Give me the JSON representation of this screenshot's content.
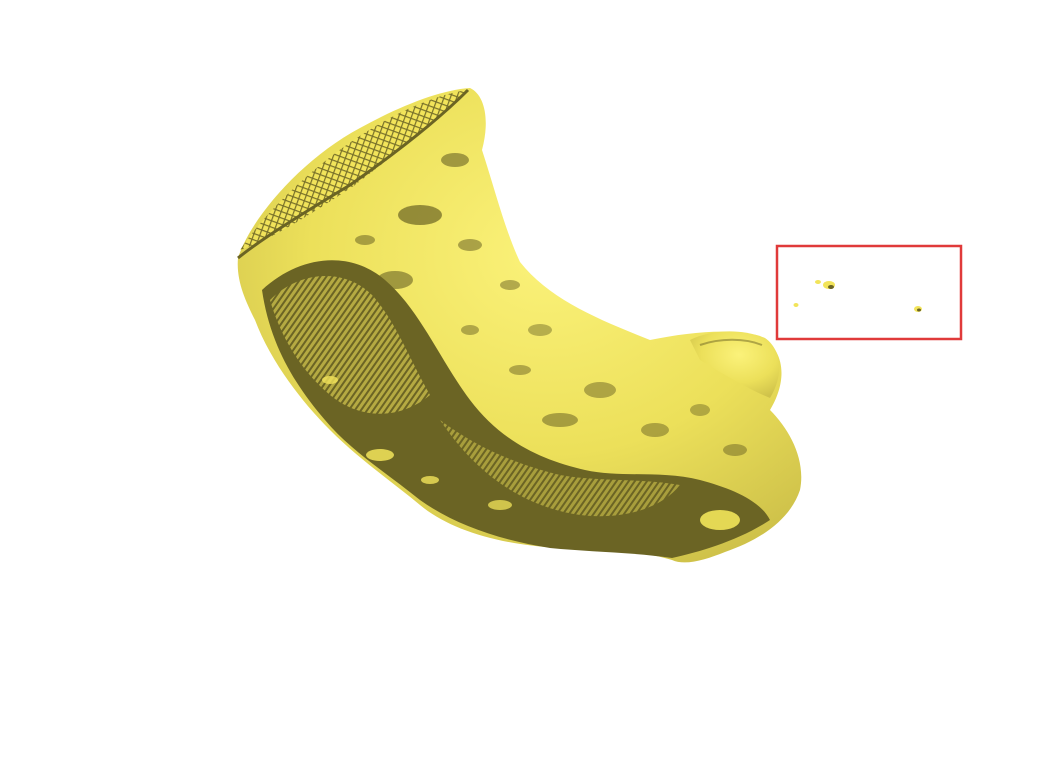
{
  "scene": {
    "label": "3D segmented surface render",
    "mesh_color": "#f2e45a",
    "mesh_shadow_color": "#6b6424",
    "background_color": "#ffffff",
    "highlight_box_color": "#e03a3a"
  }
}
